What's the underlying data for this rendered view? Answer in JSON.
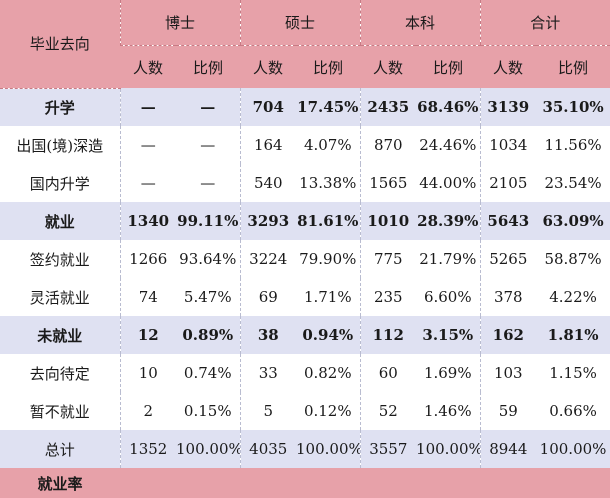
{
  "header": {
    "corner": "毕业去向",
    "groups": [
      "博士",
      "硕士",
      "本科",
      "合计"
    ],
    "sub": [
      "人数",
      "比例",
      "人数",
      "比例",
      "人数",
      "比例",
      "人数",
      "比例"
    ]
  },
  "rows": [
    {
      "label": "升学",
      "kind": "group",
      "cells": [
        "—",
        "—",
        "704",
        "17.45%",
        "2435",
        "68.46%",
        "3139",
        "35.10%"
      ]
    },
    {
      "label": "出国(境)深造",
      "kind": "sub",
      "cells": [
        "—",
        "—",
        "164",
        "4.07%",
        "870",
        "24.46%",
        "1034",
        "11.56%"
      ]
    },
    {
      "label": "国内升学",
      "kind": "sub",
      "cells": [
        "—",
        "—",
        "540",
        "13.38%",
        "1565",
        "44.00%",
        "2105",
        "23.54%"
      ]
    },
    {
      "label": "就业",
      "kind": "group",
      "cells": [
        "1340",
        "99.11%",
        "3293",
        "81.61%",
        "1010",
        "28.39%",
        "5643",
        "63.09%"
      ]
    },
    {
      "label": "签约就业",
      "kind": "sub",
      "cells": [
        "1266",
        "93.64%",
        "3224",
        "79.90%",
        "775",
        "21.79%",
        "5265",
        "58.87%"
      ]
    },
    {
      "label": "灵活就业",
      "kind": "sub",
      "cells": [
        "74",
        "5.47%",
        "69",
        "1.71%",
        "235",
        "6.60%",
        "378",
        "4.22%"
      ]
    },
    {
      "label": "未就业",
      "kind": "group",
      "cells": [
        "12",
        "0.89%",
        "38",
        "0.94%",
        "112",
        "3.15%",
        "162",
        "1.81%"
      ]
    },
    {
      "label": "去向待定",
      "kind": "sub",
      "cells": [
        "10",
        "0.74%",
        "33",
        "0.82%",
        "60",
        "1.69%",
        "103",
        "1.15%"
      ]
    },
    {
      "label": "暂不就业",
      "kind": "sub",
      "cells": [
        "2",
        "0.15%",
        "5",
        "0.12%",
        "52",
        "1.46%",
        "59",
        "0.66%"
      ]
    },
    {
      "label": "总计",
      "kind": "total",
      "cells": [
        "1352",
        "100.00%",
        "4035",
        "100.00%",
        "3557",
        "100.00%",
        "8944",
        "100.00%"
      ]
    }
  ],
  "rate_row": {
    "label": "就业率"
  },
  "colors": {
    "header_bg": "#e7a1a9",
    "group_row_bg": "#dfe1f2"
  }
}
